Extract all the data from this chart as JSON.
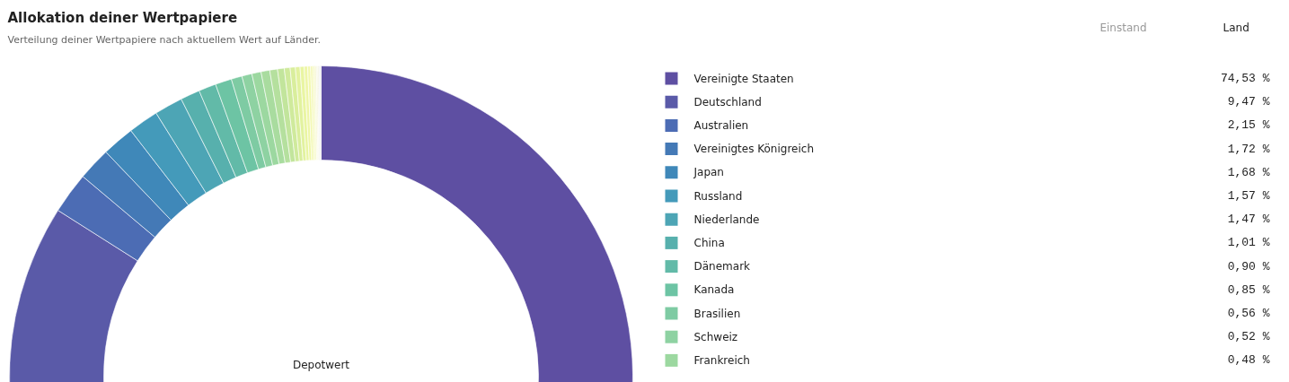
{
  "chart_data": {
    "type": "donut",
    "title": "Allokation deiner Wertpapiere",
    "subtitle": "Verteilung deiner Wertpapiere nach aktuellem Wert auf Länder.",
    "categories": [
      "Vereinigte Staaten",
      "Deutschland",
      "Australien",
      "Vereinigtes Königreich",
      "Japan",
      "Russland",
      "Niederlande",
      "China",
      "Dänemark",
      "Kanada",
      "Brasilien",
      "Schweiz",
      "Frankreich",
      null,
      null,
      null,
      null,
      null,
      null,
      null,
      null,
      null,
      null,
      null,
      null,
      null,
      null,
      null
    ],
    "values": [
      74.53,
      9.47,
      2.15,
      1.72,
      1.68,
      1.57,
      1.47,
      1.01,
      0.9,
      0.85,
      0.56,
      0.52,
      0.48,
      0.45,
      0.4,
      0.35,
      0.3,
      0.27,
      0.24,
      0.21,
      0.18,
      0.15,
      0.12,
      0.1,
      0.08,
      0.07,
      0.07,
      0.1
    ],
    "value_labels": [
      "74,53 %",
      "9,47 %",
      "2,15 %",
      "1,72 %",
      "1,68 %",
      "1,57 %",
      "1,47 %",
      "1,01 %",
      "0,90 %",
      "0,85 %",
      "0,56 %",
      "0,52 %",
      "0,48 %",
      null,
      null,
      null,
      null,
      null,
      null,
      null,
      null,
      null,
      null,
      null,
      null,
      null,
      null,
      null
    ],
    "colors": [
      "#5e4fa2",
      "#5a5aa8",
      "#4c6cb4",
      "#4479b6",
      "#3f88b9",
      "#449aba",
      "#4da5b5",
      "#57b0ad",
      "#62baa8",
      "#6dc4a4",
      "#7ecba3",
      "#8ed2a2",
      "#9cd8a0",
      "#a9dc9f",
      "#b5e09e",
      "#c2e59c",
      "#cfea9c",
      "#d9ee9c",
      "#e2f29f",
      "#e9f5a2",
      "#eef6a8",
      "#f2f8b0",
      "#f4f8b8",
      "#f5f8c2",
      "#f5f5cc",
      "#f3f3d6",
      "#f0f0e0",
      "#eeeeee"
    ],
    "legend": "right",
    "annotations": [
      "Depotwert",
      "Einstand",
      "Land"
    ]
  }
}
